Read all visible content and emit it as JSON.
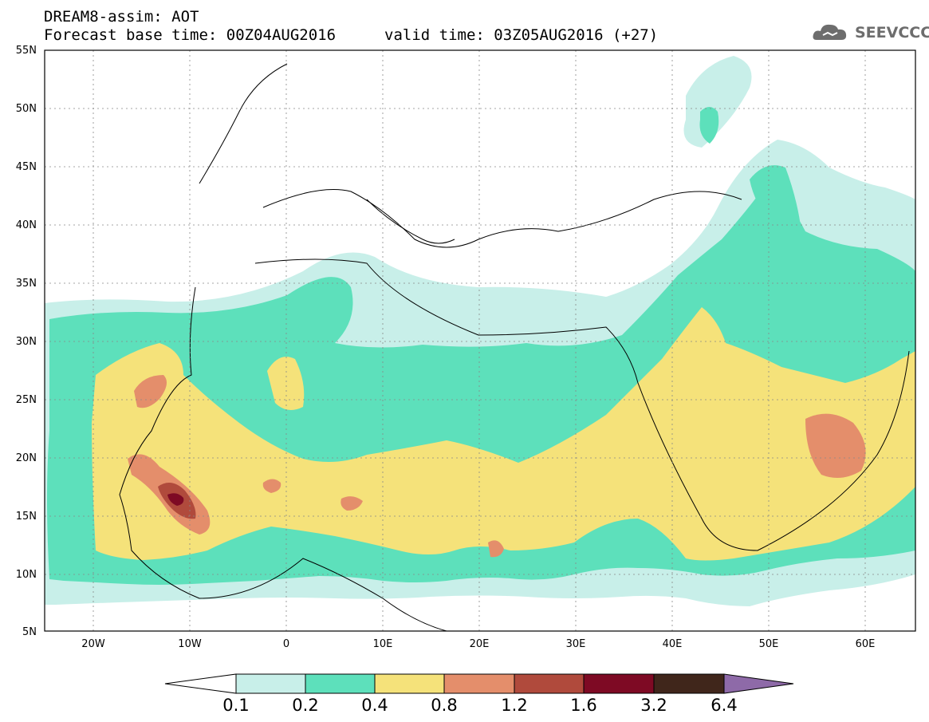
{
  "header": {
    "title_line1": "DREAM8-assim: AOT",
    "title_line2": "Forecast base time: 00Z04AUG2016",
    "valid_time": "valid time: 03Z05AUG2016 (+27)",
    "logo_text": "SEEVCCC",
    "logo_icon": "cloud-logo-icon"
  },
  "map": {
    "lat_labels": [
      "55N",
      "50N",
      "45N",
      "40N",
      "35N",
      "30N",
      "25N",
      "20N",
      "15N",
      "10N",
      "5N"
    ],
    "lon_labels": [
      "20W",
      "10W",
      "0",
      "10E",
      "20E",
      "30E",
      "40E",
      "50E",
      "60E"
    ],
    "extent": {
      "lon_min": -25,
      "lon_max": 65,
      "lat_min": 5,
      "lat_max": 55
    }
  },
  "colorbar": {
    "labels": [
      "0.1",
      "0.2",
      "0.4",
      "0.8",
      "1.2",
      "1.6",
      "3.2",
      "6.4"
    ],
    "colors": [
      "#ffffff",
      "#c8efe9",
      "#5de0bb",
      "#f5e27a",
      "#e48e6b",
      "#b04a3c",
      "#7e0a24",
      "#40261b",
      "#8e6aa8"
    ]
  }
}
